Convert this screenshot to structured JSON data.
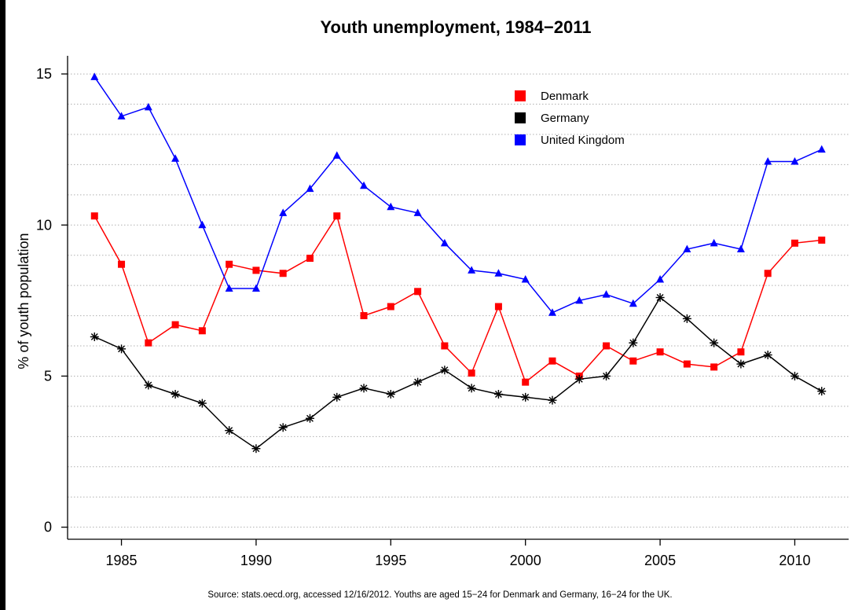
{
  "chart_data": {
    "type": "line",
    "title": "Youth unemployment, 1984−2011",
    "xlabel": "",
    "ylabel": "% of youth population",
    "xlim": [
      1983,
      2012
    ],
    "ylim": [
      -0.4,
      15.6
    ],
    "x_ticks": [
      1985,
      1990,
      1995,
      2000,
      2005,
      2010
    ],
    "y_ticks": [
      0,
      5,
      10,
      15
    ],
    "grid": "horizontal dotted every 1",
    "legend_position": "top-right",
    "source": "Source: stats.oecd.org, accessed 12/16/2012. Youths are aged 15−24 for Denmark and Germany, 16−24 for the UK.",
    "x": [
      1984,
      1985,
      1986,
      1987,
      1988,
      1989,
      1990,
      1991,
      1992,
      1993,
      1994,
      1995,
      1996,
      1997,
      1998,
      1999,
      2000,
      2001,
      2002,
      2003,
      2004,
      2005,
      2006,
      2007,
      2008,
      2009,
      2010,
      2011
    ],
    "series": [
      {
        "name": "Denmark",
        "color": "#ff0000",
        "marker": "square",
        "values": [
          10.3,
          8.7,
          6.1,
          6.7,
          6.5,
          8.7,
          8.5,
          8.4,
          8.9,
          10.3,
          7.0,
          7.3,
          7.8,
          6.0,
          5.1,
          7.3,
          4.8,
          5.5,
          5.0,
          6.0,
          5.5,
          5.8,
          5.4,
          5.3,
          5.8,
          8.4,
          9.4,
          9.5
        ]
      },
      {
        "name": "Germany",
        "color": "#000000",
        "marker": "star",
        "values": [
          6.3,
          5.9,
          4.7,
          4.4,
          4.1,
          3.2,
          2.6,
          3.3,
          3.6,
          4.3,
          4.6,
          4.4,
          4.8,
          5.2,
          4.6,
          4.4,
          4.3,
          4.2,
          4.9,
          5.0,
          6.1,
          7.6,
          6.9,
          6.1,
          5.4,
          5.7,
          5.0,
          4.5
        ]
      },
      {
        "name": "United Kingdom",
        "color": "#0000ff",
        "marker": "triangle",
        "values": [
          14.9,
          13.6,
          13.9,
          12.2,
          10.0,
          7.9,
          7.9,
          10.4,
          11.2,
          12.3,
          11.3,
          10.6,
          10.4,
          9.4,
          8.5,
          8.4,
          8.2,
          7.1,
          7.5,
          7.7,
          7.4,
          8.2,
          9.2,
          9.4,
          9.2,
          12.1,
          12.1,
          12.5
        ]
      }
    ]
  }
}
